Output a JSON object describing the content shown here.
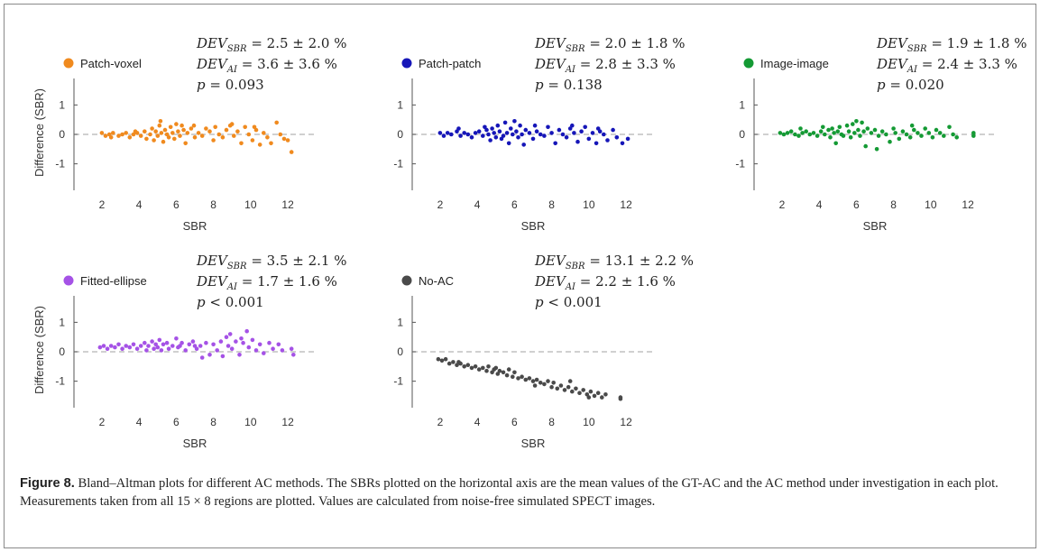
{
  "figure": {
    "caption_label": "Figure 8.",
    "caption_text": " Bland–Altman plots for different AC methods. The SBRs plotted on the horizontal axis are the mean values of the GT-AC and the AC method under investigation in each plot. Measurements taken from all 15 × 8 regions are plotted. Values are calculated from noise-free simulated SPECT images."
  },
  "chart_data": [
    {
      "type": "scatter",
      "xlabel": "SBR",
      "ylabel": "Difference (SBR)",
      "xticks": [
        2,
        4,
        6,
        8,
        10,
        12
      ],
      "yticks": [
        1,
        0,
        -1
      ],
      "xlim": [
        0.5,
        13.5
      ],
      "ylim": [
        -1.9,
        1.9
      ],
      "reference_line_y": 0,
      "color": "#f08a1e",
      "series": [
        {
          "name": "Patch-voxel"
        }
      ],
      "stats": {
        "dev_sbr": "2.5 ± 2.0 %",
        "dev_ai": "3.6 ± 3.6 %",
        "p_op": "=",
        "p_val": "0.093"
      },
      "points": [
        [
          2.0,
          0.05
        ],
        [
          2.2,
          -0.05
        ],
        [
          2.4,
          0.0
        ],
        [
          2.6,
          0.05
        ],
        [
          2.9,
          -0.05
        ],
        [
          3.1,
          0.0
        ],
        [
          3.3,
          0.05
        ],
        [
          3.5,
          -0.1
        ],
        [
          3.7,
          0.0
        ],
        [
          3.9,
          0.05
        ],
        [
          4.1,
          -0.05
        ],
        [
          4.3,
          0.1
        ],
        [
          4.4,
          -0.15
        ],
        [
          4.6,
          0.0
        ],
        [
          4.7,
          0.2
        ],
        [
          4.8,
          -0.2
        ],
        [
          4.9,
          0.1
        ],
        [
          5.0,
          -0.05
        ],
        [
          5.1,
          0.3
        ],
        [
          5.2,
          0.05
        ],
        [
          5.3,
          -0.25
        ],
        [
          5.4,
          0.15
        ],
        [
          5.5,
          0.0
        ],
        [
          5.6,
          -0.1
        ],
        [
          5.7,
          0.25
        ],
        [
          5.8,
          0.05
        ],
        [
          5.9,
          -0.15
        ],
        [
          6.0,
          0.35
        ],
        [
          6.1,
          0.1
        ],
        [
          6.2,
          -0.05
        ],
        [
          6.3,
          0.3
        ],
        [
          6.4,
          0.15
        ],
        [
          6.5,
          -0.3
        ],
        [
          6.6,
          0.05
        ],
        [
          6.8,
          0.2
        ],
        [
          7.0,
          -0.1
        ],
        [
          7.2,
          0.05
        ],
        [
          7.4,
          -0.05
        ],
        [
          7.6,
          0.2
        ],
        [
          7.8,
          0.1
        ],
        [
          8.0,
          -0.2
        ],
        [
          8.1,
          0.25
        ],
        [
          8.3,
          0.0
        ],
        [
          8.5,
          -0.1
        ],
        [
          8.7,
          0.15
        ],
        [
          8.9,
          0.3
        ],
        [
          9.1,
          -0.05
        ],
        [
          9.3,
          0.1
        ],
        [
          9.5,
          -0.3
        ],
        [
          9.7,
          0.25
        ],
        [
          9.9,
          0.0
        ],
        [
          10.1,
          -0.2
        ],
        [
          10.3,
          0.15
        ],
        [
          10.5,
          -0.35
        ],
        [
          10.7,
          0.05
        ],
        [
          10.9,
          -0.1
        ],
        [
          11.1,
          -0.3
        ],
        [
          11.4,
          0.4
        ],
        [
          11.6,
          0.0
        ],
        [
          11.8,
          -0.15
        ],
        [
          12.2,
          -0.6
        ],
        [
          2.5,
          -0.1
        ],
        [
          3.8,
          0.1
        ],
        [
          5.15,
          0.45
        ],
        [
          6.95,
          0.3
        ],
        [
          9.0,
          0.35
        ],
        [
          10.2,
          0.25
        ],
        [
          12.0,
          -0.2
        ]
      ]
    },
    {
      "type": "scatter",
      "xlabel": "SBR",
      "ylabel": "",
      "xticks": [
        2,
        4,
        6,
        8,
        10,
        12
      ],
      "yticks": [
        1,
        0,
        -1
      ],
      "xlim": [
        0.5,
        13.5
      ],
      "ylim": [
        -1.9,
        1.9
      ],
      "reference_line_y": 0,
      "color": "#1616b8",
      "series": [
        {
          "name": "Patch-patch"
        }
      ],
      "stats": {
        "dev_sbr": "2.0 ± 1.8 %",
        "dev_ai": "2.8 ± 3.3 %",
        "p_op": "=",
        "p_val": "0.138"
      },
      "points": [
        [
          2.0,
          0.05
        ],
        [
          2.2,
          -0.05
        ],
        [
          2.4,
          0.05
        ],
        [
          2.6,
          0.0
        ],
        [
          2.9,
          0.1
        ],
        [
          3.1,
          -0.05
        ],
        [
          3.3,
          0.05
        ],
        [
          3.5,
          0.0
        ],
        [
          3.7,
          -0.1
        ],
        [
          3.9,
          0.05
        ],
        [
          4.1,
          0.1
        ],
        [
          4.3,
          -0.05
        ],
        [
          4.5,
          0.15
        ],
        [
          4.6,
          0.0
        ],
        [
          4.7,
          -0.2
        ],
        [
          4.8,
          0.2
        ],
        [
          4.9,
          0.05
        ],
        [
          5.0,
          -0.1
        ],
        [
          5.1,
          0.3
        ],
        [
          5.2,
          0.1
        ],
        [
          5.3,
          -0.15
        ],
        [
          5.5,
          0.4
        ],
        [
          5.6,
          0.05
        ],
        [
          5.7,
          -0.3
        ],
        [
          5.8,
          0.2
        ],
        [
          5.9,
          0.0
        ],
        [
          6.0,
          0.45
        ],
        [
          6.1,
          0.1
        ],
        [
          6.2,
          -0.1
        ],
        [
          6.3,
          0.3
        ],
        [
          6.4,
          0.0
        ],
        [
          6.5,
          -0.35
        ],
        [
          6.6,
          0.15
        ],
        [
          6.8,
          0.05
        ],
        [
          7.0,
          -0.15
        ],
        [
          7.2,
          0.1
        ],
        [
          7.4,
          0.0
        ],
        [
          7.6,
          -0.05
        ],
        [
          7.8,
          0.25
        ],
        [
          8.0,
          0.05
        ],
        [
          8.2,
          -0.3
        ],
        [
          8.4,
          0.15
        ],
        [
          8.6,
          0.0
        ],
        [
          8.8,
          -0.1
        ],
        [
          9.0,
          0.2
        ],
        [
          9.2,
          0.05
        ],
        [
          9.4,
          -0.25
        ],
        [
          9.6,
          0.1
        ],
        [
          9.8,
          0.25
        ],
        [
          10.0,
          -0.15
        ],
        [
          10.2,
          0.05
        ],
        [
          10.4,
          -0.3
        ],
        [
          10.6,
          0.1
        ],
        [
          10.8,
          0.0
        ],
        [
          11.0,
          -0.2
        ],
        [
          11.3,
          0.15
        ],
        [
          11.5,
          -0.1
        ],
        [
          11.8,
          -0.3
        ],
        [
          12.1,
          -0.15
        ],
        [
          3.0,
          0.2
        ],
        [
          4.4,
          0.25
        ],
        [
          5.4,
          -0.05
        ],
        [
          7.1,
          0.3
        ],
        [
          9.1,
          0.3
        ],
        [
          10.5,
          0.2
        ]
      ]
    },
    {
      "type": "scatter",
      "xlabel": "SBR",
      "ylabel": "",
      "xticks": [
        2,
        4,
        6,
        8,
        10,
        12
      ],
      "yticks": [
        1,
        0,
        -1
      ],
      "xlim": [
        0.5,
        13.5
      ],
      "ylim": [
        -1.9,
        1.9
      ],
      "reference_line_y": 0,
      "color": "#149a34",
      "series": [
        {
          "name": "Image-image"
        }
      ],
      "stats": {
        "dev_sbr": "1.9 ± 1.8 %",
        "dev_ai": "2.4 ± 3.3 %",
        "p_op": "=",
        "p_val": "0.020"
      },
      "points": [
        [
          1.9,
          0.05
        ],
        [
          2.1,
          0.0
        ],
        [
          2.3,
          0.05
        ],
        [
          2.5,
          0.1
        ],
        [
          2.7,
          0.0
        ],
        [
          2.9,
          -0.05
        ],
        [
          3.1,
          0.05
        ],
        [
          3.3,
          0.1
        ],
        [
          3.5,
          0.0
        ],
        [
          3.7,
          0.05
        ],
        [
          3.9,
          -0.05
        ],
        [
          4.1,
          0.1
        ],
        [
          4.3,
          0.0
        ],
        [
          4.5,
          0.15
        ],
        [
          4.6,
          -0.1
        ],
        [
          4.7,
          0.2
        ],
        [
          4.8,
          0.05
        ],
        [
          4.9,
          -0.3
        ],
        [
          5.0,
          0.1
        ],
        [
          5.1,
          0.25
        ],
        [
          5.2,
          0.0
        ],
        [
          5.3,
          -0.05
        ],
        [
          5.5,
          0.3
        ],
        [
          5.6,
          0.1
        ],
        [
          5.7,
          -0.1
        ],
        [
          5.8,
          0.35
        ],
        [
          5.9,
          0.05
        ],
        [
          6.0,
          0.45
        ],
        [
          6.1,
          0.15
        ],
        [
          6.2,
          -0.05
        ],
        [
          6.3,
          0.4
        ],
        [
          6.4,
          0.1
        ],
        [
          6.5,
          -0.4
        ],
        [
          6.6,
          0.2
        ],
        [
          6.8,
          0.05
        ],
        [
          7.0,
          0.15
        ],
        [
          7.2,
          -0.05
        ],
        [
          7.4,
          0.1
        ],
        [
          7.6,
          0.0
        ],
        [
          7.8,
          -0.25
        ],
        [
          8.0,
          0.2
        ],
        [
          8.1,
          0.05
        ],
        [
          8.3,
          -0.15
        ],
        [
          8.5,
          0.1
        ],
        [
          8.7,
          0.0
        ],
        [
          8.9,
          -0.1
        ],
        [
          9.1,
          0.15
        ],
        [
          9.3,
          0.05
        ],
        [
          9.5,
          -0.05
        ],
        [
          9.7,
          0.2
        ],
        [
          9.9,
          0.05
        ],
        [
          10.1,
          -0.1
        ],
        [
          10.3,
          0.15
        ],
        [
          10.5,
          0.05
        ],
        [
          10.7,
          -0.05
        ],
        [
          11.0,
          0.25
        ],
        [
          11.2,
          0.0
        ],
        [
          11.4,
          -0.1
        ],
        [
          12.3,
          -0.05
        ],
        [
          12.3,
          0.05
        ],
        [
          3.0,
          0.2
        ],
        [
          4.2,
          0.25
        ],
        [
          7.1,
          -0.5
        ],
        [
          9.0,
          0.3
        ]
      ]
    },
    {
      "type": "scatter",
      "xlabel": "SBR",
      "ylabel": "Difference (SBR)",
      "xticks": [
        2,
        4,
        6,
        8,
        10,
        12
      ],
      "yticks": [
        1,
        0,
        -1
      ],
      "xlim": [
        0.5,
        13.5
      ],
      "ylim": [
        -1.9,
        1.9
      ],
      "reference_line_y": 0,
      "color": "#a552e6",
      "series": [
        {
          "name": "Fitted-ellipse"
        }
      ],
      "stats": {
        "dev_sbr": "3.5 ± 2.1 %",
        "dev_ai": "1.7 ± 1.6 %",
        "p_op": "<",
        "p_val": "0.001"
      },
      "points": [
        [
          1.9,
          0.15
        ],
        [
          2.1,
          0.2
        ],
        [
          2.3,
          0.1
        ],
        [
          2.5,
          0.2
        ],
        [
          2.7,
          0.15
        ],
        [
          2.9,
          0.25
        ],
        [
          3.1,
          0.1
        ],
        [
          3.3,
          0.2
        ],
        [
          3.5,
          0.15
        ],
        [
          3.7,
          0.25
        ],
        [
          3.9,
          0.1
        ],
        [
          4.1,
          0.2
        ],
        [
          4.3,
          0.3
        ],
        [
          4.4,
          0.05
        ],
        [
          4.5,
          0.2
        ],
        [
          4.7,
          0.35
        ],
        [
          4.8,
          0.1
        ],
        [
          4.9,
          0.25
        ],
        [
          5.0,
          0.15
        ],
        [
          5.1,
          0.4
        ],
        [
          5.2,
          0.05
        ],
        [
          5.3,
          0.25
        ],
        [
          5.5,
          0.3
        ],
        [
          5.6,
          0.1
        ],
        [
          5.8,
          0.2
        ],
        [
          6.0,
          0.45
        ],
        [
          6.1,
          0.15
        ],
        [
          6.3,
          0.3
        ],
        [
          6.5,
          0.05
        ],
        [
          6.7,
          0.25
        ],
        [
          6.9,
          0.35
        ],
        [
          7.1,
          0.1
        ],
        [
          7.3,
          0.2
        ],
        [
          7.4,
          -0.2
        ],
        [
          7.6,
          0.3
        ],
        [
          7.8,
          -0.1
        ],
        [
          8.0,
          0.25
        ],
        [
          8.2,
          0.05
        ],
        [
          8.4,
          0.35
        ],
        [
          8.5,
          -0.15
        ],
        [
          8.7,
          0.5
        ],
        [
          8.8,
          0.2
        ],
        [
          8.9,
          0.6
        ],
        [
          9.0,
          0.1
        ],
        [
          9.2,
          0.35
        ],
        [
          9.4,
          -0.1
        ],
        [
          9.6,
          0.3
        ],
        [
          9.8,
          0.7
        ],
        [
          9.9,
          0.15
        ],
        [
          10.1,
          0.4
        ],
        [
          10.3,
          0.05
        ],
        [
          10.5,
          0.25
        ],
        [
          10.7,
          -0.05
        ],
        [
          11.0,
          0.3
        ],
        [
          11.2,
          0.1
        ],
        [
          11.5,
          0.25
        ],
        [
          11.7,
          0.05
        ],
        [
          12.2,
          0.1
        ],
        [
          12.3,
          -0.1
        ],
        [
          6.2,
          0.2
        ],
        [
          7.0,
          0.2
        ],
        [
          9.5,
          0.45
        ]
      ]
    },
    {
      "type": "scatter",
      "xlabel": "SBR",
      "ylabel": "",
      "xticks": [
        2,
        4,
        6,
        8,
        10,
        12
      ],
      "yticks": [
        1,
        0,
        -1
      ],
      "xlim": [
        0.5,
        13.5
      ],
      "ylim": [
        -1.9,
        1.9
      ],
      "reference_line_y": 0,
      "color": "#4a4a4a",
      "series": [
        {
          "name": "No-AC"
        }
      ],
      "stats": {
        "dev_sbr": "13.1 ± 2.2 %",
        "dev_ai": "2.2 ± 1.6 %",
        "p_op": "<",
        "p_val": "0.001"
      },
      "points": [
        [
          1.9,
          -0.25
        ],
        [
          2.1,
          -0.3
        ],
        [
          2.3,
          -0.25
        ],
        [
          2.5,
          -0.4
        ],
        [
          2.7,
          -0.35
        ],
        [
          2.9,
          -0.45
        ],
        [
          3.1,
          -0.4
        ],
        [
          3.3,
          -0.5
        ],
        [
          3.5,
          -0.45
        ],
        [
          3.7,
          -0.55
        ],
        [
          3.9,
          -0.5
        ],
        [
          4.1,
          -0.6
        ],
        [
          4.3,
          -0.55
        ],
        [
          4.5,
          -0.65
        ],
        [
          4.6,
          -0.5
        ],
        [
          4.8,
          -0.7
        ],
        [
          4.9,
          -0.6
        ],
        [
          5.1,
          -0.75
        ],
        [
          5.2,
          -0.65
        ],
        [
          5.4,
          -0.7
        ],
        [
          5.6,
          -0.8
        ],
        [
          5.7,
          -0.6
        ],
        [
          5.9,
          -0.85
        ],
        [
          6.0,
          -0.7
        ],
        [
          6.2,
          -0.9
        ],
        [
          6.4,
          -0.85
        ],
        [
          6.6,
          -0.95
        ],
        [
          6.8,
          -0.9
        ],
        [
          7.0,
          -1.0
        ],
        [
          7.2,
          -0.95
        ],
        [
          7.4,
          -1.05
        ],
        [
          7.6,
          -1.1
        ],
        [
          7.8,
          -1.0
        ],
        [
          8.0,
          -1.2
        ],
        [
          8.1,
          -1.05
        ],
        [
          8.3,
          -1.25
        ],
        [
          8.5,
          -1.15
        ],
        [
          8.7,
          -1.3
        ],
        [
          8.9,
          -1.2
        ],
        [
          9.1,
          -1.35
        ],
        [
          9.3,
          -1.25
        ],
        [
          9.5,
          -1.4
        ],
        [
          9.7,
          -1.3
        ],
        [
          9.9,
          -1.45
        ],
        [
          10.1,
          -1.35
        ],
        [
          10.3,
          -1.5
        ],
        [
          10.5,
          -1.4
        ],
        [
          10.7,
          -1.55
        ],
        [
          10.9,
          -1.45
        ],
        [
          11.7,
          -1.55
        ],
        [
          11.7,
          -1.6
        ],
        [
          3.0,
          -0.35
        ],
        [
          5.0,
          -0.55
        ],
        [
          7.1,
          -1.15
        ],
        [
          9.0,
          -1.0
        ],
        [
          10.0,
          -1.55
        ]
      ]
    }
  ]
}
